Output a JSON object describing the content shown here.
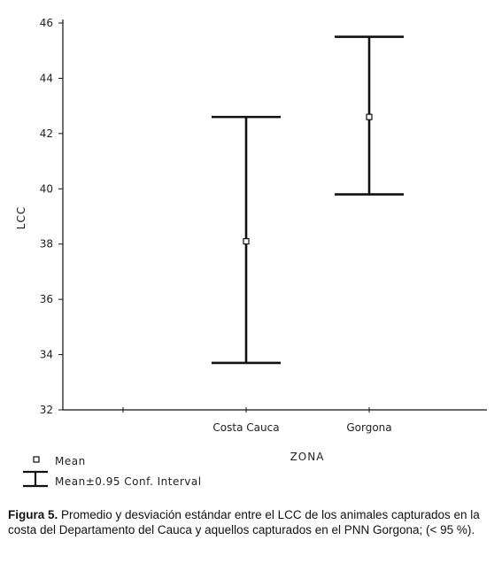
{
  "chart_data": {
    "type": "error-bar",
    "xlabel": "ZONA",
    "ylabel": "LCC",
    "ylim": [
      32,
      46
    ],
    "yticks": [
      32,
      34,
      36,
      38,
      40,
      42,
      44,
      46
    ],
    "categories": [
      "",
      "Costa Cauca",
      "Gorgona"
    ],
    "series": [
      {
        "name": "Mean",
        "values": [
          null,
          38.1,
          42.6
        ],
        "lower": [
          null,
          33.7,
          39.8
        ],
        "upper": [
          null,
          42.6,
          45.5
        ]
      }
    ],
    "legend": {
      "placement": "bottom-left",
      "items": [
        {
          "symbol": "square-marker",
          "label": "Mean"
        },
        {
          "symbol": "error-bar-marker",
          "label": "Mean±0.95 Conf. Interval"
        }
      ]
    },
    "grid": false
  },
  "caption": {
    "label": "Figura 5.",
    "text": " Promedio y desviación estándar entre el LCC de los animales capturados en la costa del Departamento del Cauca y aquellos capturados en el PNN Gorgona; (< 95 %)."
  },
  "colors": {
    "ink": "#111111",
    "background": "#ffffff"
  }
}
